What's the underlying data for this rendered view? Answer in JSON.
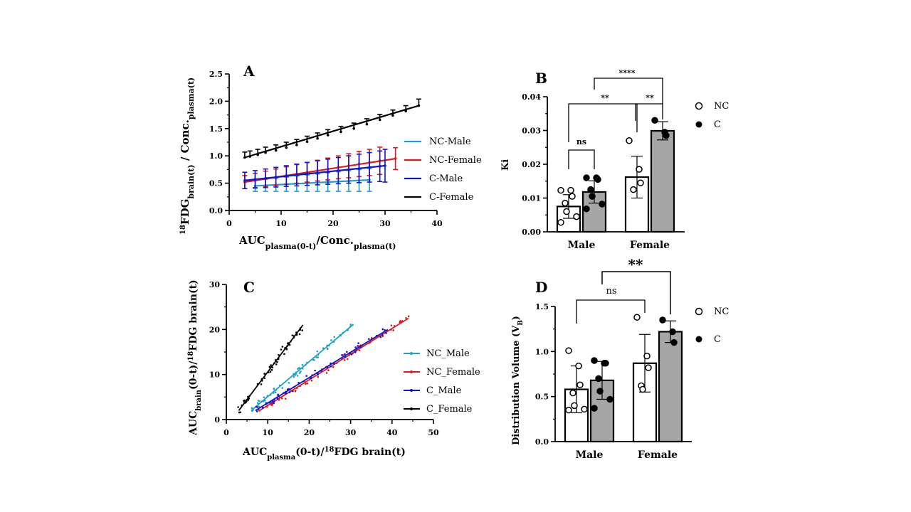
{
  "chart_data": [
    {
      "panel": "A",
      "type": "line",
      "title": "",
      "xlabel": "AUC_plasma(0-t)/Conc._plasma(t)",
      "ylabel": "18FDG_brain(t) / Conc._plasma(t)",
      "xlim": [
        0,
        40
      ],
      "ylim": [
        0,
        2.5
      ],
      "xticks": [
        "0",
        "10",
        "20",
        "30",
        "40"
      ],
      "yticks": [
        "0.0",
        "0.5",
        "1.0",
        "1.5",
        "2.0",
        "2.5"
      ],
      "legend_position": "right",
      "series": [
        {
          "name": "NC-Male",
          "color": "#1f9fd0",
          "x": [
            5,
            7,
            9,
            11,
            13,
            15,
            17,
            19,
            21,
            23,
            25,
            27
          ],
          "y": [
            0.45,
            0.46,
            0.47,
            0.48,
            0.49,
            0.5,
            0.51,
            0.52,
            0.53,
            0.54,
            0.55,
            0.56
          ],
          "err": [
            0.1,
            0.11,
            0.12,
            0.13,
            0.14,
            0.15,
            0.16,
            0.17,
            0.18,
            0.19,
            0.2,
            0.21
          ]
        },
        {
          "name": "NC-Female",
          "color": "#e0191f",
          "x": [
            3,
            5,
            7,
            9,
            11,
            13,
            15,
            17,
            19,
            21,
            23,
            25,
            27,
            29,
            32
          ],
          "y": [
            0.52,
            0.55,
            0.58,
            0.61,
            0.64,
            0.67,
            0.7,
            0.73,
            0.76,
            0.79,
            0.82,
            0.85,
            0.88,
            0.91,
            0.95
          ],
          "err": [
            0.12,
            0.13,
            0.14,
            0.15,
            0.16,
            0.17,
            0.18,
            0.19,
            0.2,
            0.21,
            0.22,
            0.23,
            0.24,
            0.25,
            0.2
          ]
        },
        {
          "name": "C-Male",
          "color": "#1414c8",
          "x": [
            3,
            5,
            7,
            9,
            11,
            13,
            15,
            17,
            19,
            21,
            23,
            25,
            27,
            29,
            30
          ],
          "y": [
            0.55,
            0.57,
            0.59,
            0.61,
            0.63,
            0.65,
            0.67,
            0.69,
            0.71,
            0.73,
            0.75,
            0.77,
            0.79,
            0.81,
            0.82
          ],
          "err": [
            0.15,
            0.16,
            0.17,
            0.18,
            0.19,
            0.2,
            0.21,
            0.22,
            0.23,
            0.24,
            0.25,
            0.26,
            0.27,
            0.28,
            0.3
          ]
        },
        {
          "name": "C-Female",
          "color": "#000000",
          "x": [
            3,
            4,
            5.5,
            7,
            9,
            11,
            13,
            15,
            17,
            19,
            21.5,
            24,
            26.5,
            29,
            31.5,
            34,
            36.5
          ],
          "y": [
            0.97,
            0.99,
            1.02,
            1.06,
            1.1,
            1.15,
            1.2,
            1.26,
            1.32,
            1.38,
            1.44,
            1.5,
            1.58,
            1.66,
            1.74,
            1.82,
            1.92
          ],
          "err": [
            0.1,
            0.1,
            0.1,
            0.1,
            0.1,
            0.1,
            0.1,
            0.1,
            0.1,
            0.1,
            0.1,
            0.1,
            0.1,
            0.1,
            0.1,
            0.1,
            0.12
          ]
        }
      ]
    },
    {
      "panel": "B",
      "type": "bar",
      "title": "",
      "ylabel": "Ki",
      "ylim": [
        0,
        0.04
      ],
      "yticks": [
        "0.00",
        "0.01",
        "0.02",
        "0.03",
        "0.04"
      ],
      "categories": [
        "Male",
        "Female"
      ],
      "series": [
        {
          "name": "NC",
          "values": [
            0.0075,
            0.0162
          ],
          "sd": [
            0.0035,
            0.0062
          ],
          "points": [
            [
              0.0123,
              0.0123,
              0.0105,
              0.0085,
              0.006,
              0.0045,
              0.0028
            ],
            [
              0.027,
              0.0185,
              0.0145,
              0.0125
            ]
          ]
        },
        {
          "name": "C",
          "values": [
            0.0118,
            0.0299
          ],
          "sd": [
            0.0033,
            0.0027
          ],
          "points": [
            [
              0.016,
              0.016,
              0.0155,
              0.0125,
              0.0105,
              0.0082,
              0.0068
            ],
            [
              0.033,
              0.0295,
              0.0285
            ]
          ]
        }
      ],
      "significance": [
        {
          "label": "ns",
          "between": [
            "Male NC",
            "Male C"
          ]
        },
        {
          "label": "**",
          "between": [
            "Male NC",
            "Female NC"
          ]
        },
        {
          "label": "**",
          "between": [
            "Female NC",
            "Female C"
          ]
        },
        {
          "label": "****",
          "between": [
            "Male C",
            "Female C"
          ]
        }
      ],
      "legend_position": "right"
    },
    {
      "panel": "C",
      "type": "scatter",
      "title": "",
      "xlabel": "AUC_plasma(0-t)/18FDG brain(t)",
      "ylabel": "AUC_brain(0-t)/18FDG brain(t)",
      "xlim": [
        0,
        50
      ],
      "ylim": [
        0,
        30
      ],
      "xticks": [
        "0",
        "10",
        "20",
        "30",
        "40",
        "50"
      ],
      "yticks": [
        "0",
        "10",
        "20",
        "30"
      ],
      "legend_position": "right",
      "series": [
        {
          "name": "NC_Male",
          "color": "#1fa3c4",
          "fit": {
            "x": [
              6,
              30.5
            ],
            "y": [
              2.0,
              21.0
            ]
          }
        },
        {
          "name": "NC_Female",
          "color": "#e0191f",
          "fit": {
            "x": [
              8,
              44
            ],
            "y": [
              2.0,
              22.5
            ]
          }
        },
        {
          "name": "C_Male",
          "color": "#1414c8",
          "fit": {
            "x": [
              7,
              39
            ],
            "y": [
              2.0,
              20.0
            ]
          }
        },
        {
          "name": "C_Female",
          "color": "#000000",
          "fit": {
            "x": [
              3,
              18.5
            ],
            "y": [
              2.0,
              21.0
            ]
          }
        }
      ]
    },
    {
      "panel": "D",
      "type": "bar",
      "title": "",
      "ylabel": "Distribution Volume (V_B)",
      "ylim": [
        0,
        1.5
      ],
      "yticks": [
        "0.0",
        "0.5",
        "1.0",
        "1.5"
      ],
      "categories": [
        "Male",
        "Female"
      ],
      "series": [
        {
          "name": "NC",
          "values": [
            0.58,
            0.87
          ],
          "sd": [
            0.26,
            0.32
          ],
          "points": [
            [
              1.01,
              0.84,
              0.63,
              0.54,
              0.4,
              0.36,
              0.35
            ],
            [
              1.38,
              0.95,
              0.82,
              0.62,
              0.58
            ]
          ]
        },
        {
          "name": "C",
          "values": [
            0.68,
            1.22
          ],
          "sd": [
            0.21,
            0.12
          ],
          "points": [
            [
              0.9,
              0.87,
              0.87,
              0.7,
              0.56,
              0.47,
              0.37
            ],
            [
              1.35,
              1.22,
              1.1
            ]
          ]
        }
      ],
      "significance": [
        {
          "label": "ns",
          "between": [
            "Male NC",
            "Female NC"
          ]
        },
        {
          "label": "**",
          "between": [
            "Male C",
            "Female C"
          ]
        }
      ],
      "legend_position": "right"
    }
  ],
  "labels": {
    "panelA": "A",
    "panelB": "B",
    "panelC": "C",
    "panelD": "D",
    "male": "Male",
    "female": "Female",
    "nc": "NC",
    "c": "C",
    "ki": "Ki",
    "ns": "ns",
    "two_star": "**",
    "four_star": "****",
    "vb_label": "Distribution Volume (V",
    "vb_sub": "B",
    "vb_end": ")",
    "a_ylab_sup": "18",
    "a_ylab_1": "FDG",
    "a_ylab_sub1": "brain(t)",
    "a_ylab_2": " / Conc.",
    "a_ylab_sub2": "plasma(t)",
    "a_xlab_1": "AUC",
    "a_xlab_sub1": "plasma(0-t)",
    "a_xlab_2": "/Conc.",
    "a_xlab_sub2": "plasma(t)",
    "c_ylab_1": "AUC",
    "c_ylab_sub1": "brain",
    "c_ylab_2": "(0-t)/",
    "c_ylab_sup": "18",
    "c_ylab_3": "FDG brain(t)",
    "c_xlab_1": "AUC",
    "c_xlab_sub1": "plasma",
    "c_xlab_2": "(0-t)/",
    "c_xlab_sup": "18",
    "c_xlab_3": "FDG brain(t)"
  }
}
